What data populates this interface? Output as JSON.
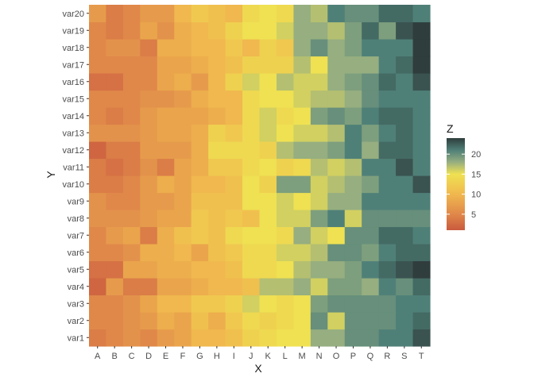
{
  "chart_data": {
    "type": "heatmap",
    "title": "",
    "xlabel": "X",
    "ylabel": "Y",
    "x_categories": [
      "A",
      "B",
      "C",
      "D",
      "E",
      "F",
      "G",
      "H",
      "I",
      "J",
      "K",
      "L",
      "M",
      "N",
      "O",
      "P",
      "Q",
      "R",
      "S",
      "T"
    ],
    "y_categories": [
      "var1",
      "var2",
      "var3",
      "var4",
      "var5",
      "var6",
      "var7",
      "var8",
      "var9",
      "var10",
      "var11",
      "var12",
      "var13",
      "var14",
      "var15",
      "var16",
      "var17",
      "var18",
      "var19",
      "var20"
    ],
    "z_label": "Z",
    "z_range": [
      1,
      24
    ],
    "legend_breaks": [
      5,
      10,
      15,
      20
    ],
    "legend_position": "right",
    "color_stops": [
      {
        "value": 1,
        "color": "#c95a3e"
      },
      {
        "value": 5,
        "color": "#e0884a"
      },
      {
        "value": 10,
        "color": "#f0b84e"
      },
      {
        "value": 15,
        "color": "#efe152"
      },
      {
        "value": 18,
        "color": "#96ae80"
      },
      {
        "value": 21,
        "color": "#4f8078"
      },
      {
        "value": 24,
        "color": "#2f3d3c"
      }
    ],
    "values": [
      [
        4,
        5,
        6,
        5,
        7,
        8,
        10,
        10,
        11,
        13,
        14,
        15,
        15,
        18,
        18,
        20,
        20,
        21,
        21,
        23
      ],
      [
        5,
        5,
        6,
        7,
        9,
        8,
        11,
        9,
        12,
        14,
        13,
        14,
        15,
        20,
        16,
        20,
        20,
        20,
        21,
        22
      ],
      [
        5,
        5,
        6,
        8,
        10,
        10,
        12,
        12,
        13,
        16,
        15,
        14,
        15,
        19,
        20,
        20,
        20,
        20,
        21,
        21
      ],
      [
        2,
        7,
        4,
        4,
        8,
        8,
        9,
        10,
        10,
        11,
        17,
        17,
        18,
        16,
        19,
        19,
        18,
        21,
        20,
        22
      ],
      [
        3,
        3,
        8,
        8,
        9,
        9,
        10,
        10,
        11,
        14,
        14,
        15,
        17,
        18,
        18,
        19,
        21,
        22,
        23,
        24
      ],
      [
        5,
        5,
        6,
        9,
        9,
        10,
        8,
        11,
        12,
        14,
        14,
        16,
        16,
        17,
        20,
        20,
        19,
        21,
        22,
        22
      ],
      [
        5,
        7,
        8,
        4,
        9,
        11,
        12,
        11,
        14,
        15,
        15,
        14,
        18,
        16,
        15,
        20,
        20,
        22,
        22,
        21
      ],
      [
        6,
        6,
        6,
        7,
        8,
        8,
        12,
        11,
        12,
        11,
        15,
        16,
        16,
        19,
        21,
        16,
        20,
        20,
        20,
        20
      ],
      [
        6,
        5,
        5,
        7,
        7,
        8,
        11,
        11,
        11,
        15,
        15,
        16,
        15,
        16,
        18,
        18,
        21,
        21,
        21,
        21
      ],
      [
        4,
        4,
        5,
        7,
        9,
        8,
        10,
        10,
        11,
        15,
        13,
        19,
        19,
        16,
        17,
        18,
        19,
        21,
        21,
        23
      ],
      [
        4,
        3,
        4,
        6,
        4,
        8,
        9,
        12,
        12,
        14,
        15,
        13,
        14,
        17,
        16,
        17,
        21,
        21,
        23,
        21
      ],
      [
        2,
        4,
        4,
        7,
        7,
        7,
        9,
        14,
        14,
        14,
        13,
        17,
        18,
        18,
        19,
        21,
        18,
        22,
        22,
        21
      ],
      [
        6,
        6,
        6,
        7,
        8,
        8,
        9,
        13,
        12,
        14,
        16,
        15,
        16,
        16,
        17,
        21,
        19,
        21,
        22,
        21
      ],
      [
        5,
        4,
        5,
        7,
        8,
        8,
        8,
        9,
        10,
        14,
        16,
        14,
        15,
        19,
        20,
        19,
        21,
        22,
        22,
        21
      ],
      [
        5,
        5,
        5,
        6,
        6,
        7,
        9,
        10,
        10,
        14,
        15,
        15,
        16,
        17,
        17,
        18,
        20,
        21,
        21,
        21
      ],
      [
        3,
        3,
        5,
        5,
        8,
        9,
        7,
        10,
        13,
        16,
        15,
        17,
        16,
        16,
        18,
        19,
        20,
        22,
        21,
        23
      ],
      [
        5,
        5,
        5,
        5,
        8,
        8,
        9,
        10,
        11,
        13,
        13,
        13,
        17,
        15,
        18,
        18,
        18,
        21,
        22,
        24
      ],
      [
        5,
        6,
        6,
        4,
        9,
        9,
        10,
        10,
        12,
        10,
        13,
        12,
        18,
        20,
        18,
        19,
        21,
        21,
        21,
        24
      ],
      [
        5,
        4,
        5,
        8,
        6,
        9,
        10,
        11,
        13,
        15,
        15,
        16,
        18,
        18,
        17,
        19,
        22,
        19,
        23,
        24
      ],
      [
        7,
        4,
        5,
        7,
        7,
        10,
        12,
        11,
        10,
        14,
        15,
        14,
        18,
        17,
        21,
        20,
        20,
        22,
        22,
        21
      ]
    ]
  }
}
